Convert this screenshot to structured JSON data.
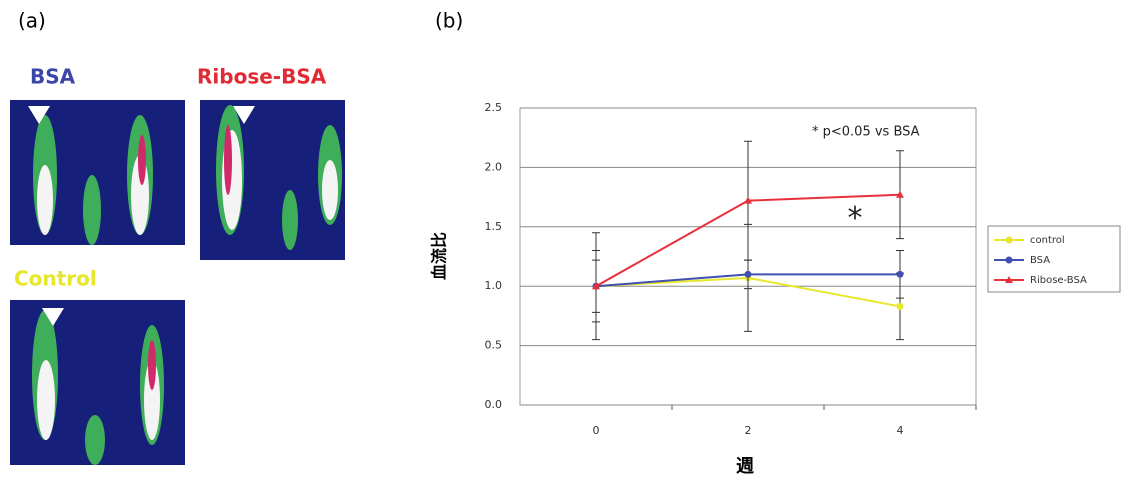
{
  "figure_a": {
    "label": "(a)",
    "images": [
      {
        "label": "BSA"
      },
      {
        "label": "Ribose-BSA"
      },
      {
        "label": "Control"
      }
    ]
  },
  "chart_data": {
    "type": "line",
    "panel_label": "(b)",
    "annotation": "* p<0.05 vs BSA",
    "marker_annotation": "*",
    "x_label": "週",
    "y_label": "血流比",
    "categories": [
      "0",
      "2",
      "4"
    ],
    "series": [
      {
        "name": "control",
        "color": "#e8e82a",
        "marker": "circle",
        "values": [
          1.0,
          1.07,
          0.83
        ],
        "errors": [
          0.45,
          0.45,
          0.28
        ]
      },
      {
        "name": "BSA",
        "color": "#4050b0",
        "marker": "circle",
        "values": [
          1.0,
          1.1,
          1.1
        ],
        "errors": [
          0.22,
          0.12,
          0.2
        ]
      },
      {
        "name": "Ribose-BSA",
        "color": "#e8303a",
        "marker": "triangle",
        "values": [
          1.0,
          1.72,
          1.77
        ],
        "errors": [
          0.3,
          0.5,
          0.37
        ]
      }
    ],
    "ylim": [
      0,
      2.5
    ],
    "yticks": [
      {
        "value": 0,
        "label": "0.0"
      },
      0.5,
      {
        "value": 1,
        "label": "1.0"
      },
      1.5,
      {
        "value": 2,
        "label": "2.0"
      },
      2.5
    ],
    "grid": true,
    "legend": "right"
  }
}
